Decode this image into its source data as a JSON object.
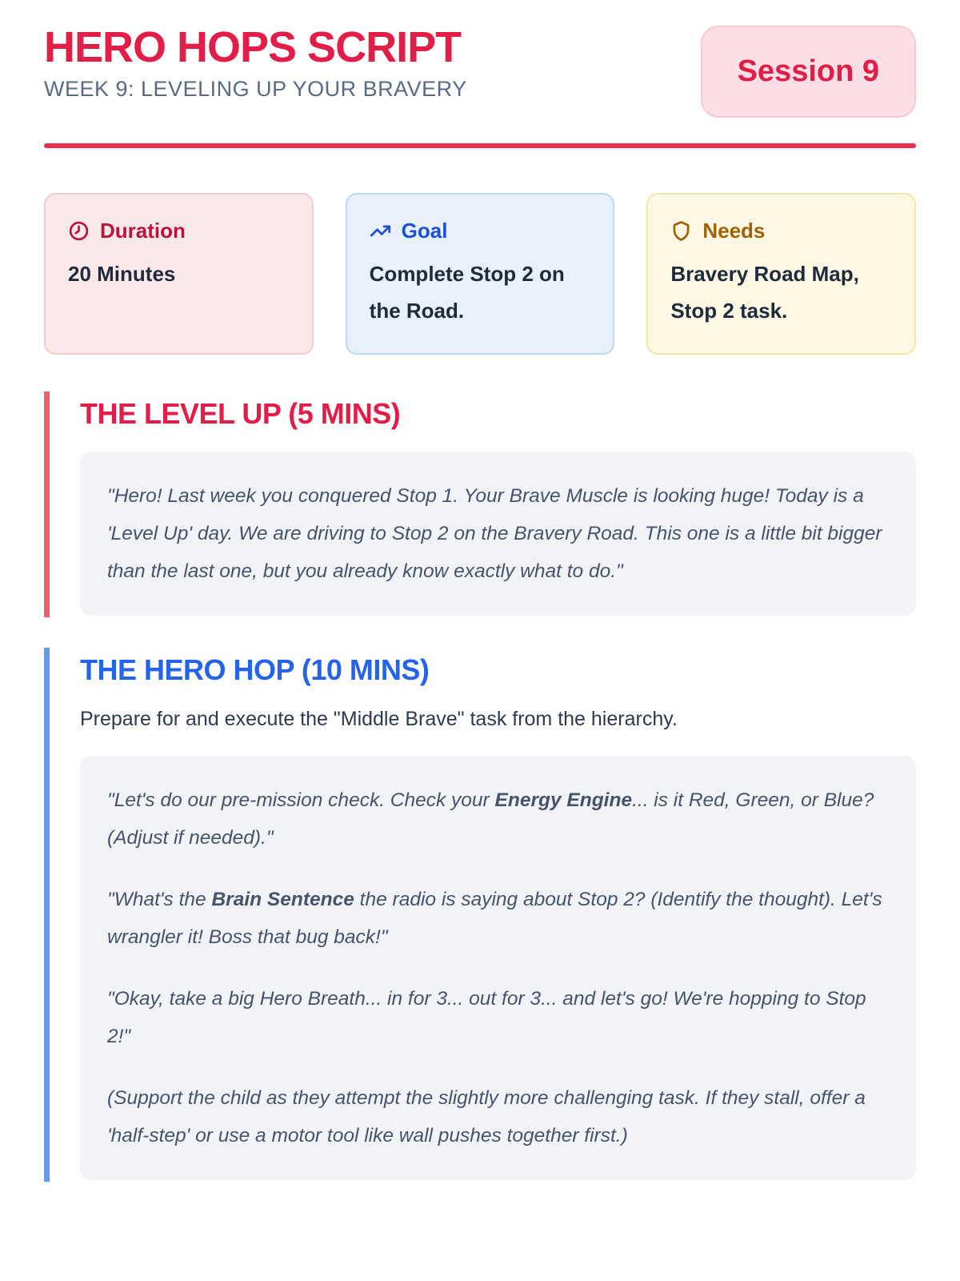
{
  "header": {
    "title": "HERO HOPS SCRIPT",
    "subtitle": "WEEK 9: LEVELING UP YOUR BRAVERY",
    "session_badge": "Session 9"
  },
  "colors": {
    "accent_red": "#e11d48",
    "accent_blue": "#2563eb",
    "accent_amber": "#a16207",
    "stripe_red": "#f15e6e",
    "stripe_blue": "#5f9df5",
    "rule_red": "#e8304e",
    "badge_bg": "#fcdfe4",
    "card_red_bg": "#fbe9ea",
    "card_blue_bg": "#e7f0fb",
    "card_yellow_bg": "#fcf8e4",
    "quote_bg": "#f1f3f6"
  },
  "cards": [
    {
      "icon": "clock-icon",
      "label": "Duration",
      "value": "20 Minutes",
      "theme": "red"
    },
    {
      "icon": "trending-up-icon",
      "label": "Goal",
      "value": "Complete Stop 2 on the Road.",
      "theme": "blue"
    },
    {
      "icon": "shield-icon",
      "label": "Needs",
      "value": "Bravery Road Map, Stop 2 task.",
      "theme": "yellow"
    }
  ],
  "sections": [
    {
      "id": "level-up",
      "theme": "red",
      "heading": "THE LEVEL UP (5 MINS)",
      "quote_paragraphs": [
        [
          {
            "text": "\"Hero! Last week you conquered Stop 1. Your Brave Muscle is looking huge! Today is a 'Level Up' day. We are driving to Stop 2 on the Bravery Road. This one is a little bit bigger than the last one, but you already know exactly what to do.\""
          }
        ]
      ]
    },
    {
      "id": "hero-hop",
      "theme": "blue",
      "heading": "THE HERO HOP (10 MINS)",
      "intro": "Prepare for and execute the \"Middle Brave\" task from the hierarchy.",
      "quote_paragraphs": [
        [
          {
            "text": "\"Let's do our pre-mission check. Check your "
          },
          {
            "text": "Energy Engine",
            "bold": true
          },
          {
            "text": "... is it Red, Green, or Blue? (Adjust if needed).\""
          }
        ],
        [
          {
            "text": "\"What's the "
          },
          {
            "text": "Brain Sentence",
            "bold": true
          },
          {
            "text": " the radio is saying about Stop 2? (Identify the thought). Let's wrangler it! Boss that bug back!\""
          }
        ],
        [
          {
            "text": "\"Okay, take a big Hero Breath... in for 3... out for 3... and let's go! We're hopping to Stop 2!\""
          }
        ],
        [
          {
            "text": "(Support the child as they attempt the slightly more challenging task. If they stall, offer a 'half-step' or use a motor tool like wall pushes together first.)"
          }
        ]
      ]
    }
  ]
}
